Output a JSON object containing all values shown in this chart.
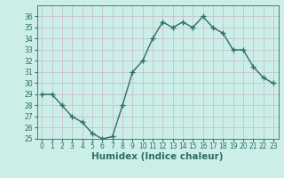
{
  "x": [
    0,
    1,
    2,
    3,
    4,
    5,
    6,
    7,
    8,
    9,
    10,
    11,
    12,
    13,
    14,
    15,
    16,
    17,
    18,
    19,
    20,
    21,
    22,
    23
  ],
  "y": [
    29,
    29,
    28,
    27,
    26.5,
    25.5,
    25,
    25.2,
    28,
    31,
    32,
    34,
    35.5,
    35,
    35.5,
    35,
    36,
    35,
    34.5,
    33,
    33,
    31.5,
    30.5,
    30
  ],
  "line_color": "#2e6e62",
  "marker": "+",
  "marker_size": 4,
  "marker_linewidth": 1.0,
  "line_width": 1.0,
  "xlabel": "Humidex (Indice chaleur)",
  "ylabel": "",
  "xlim": [
    -0.5,
    23.5
  ],
  "ylim": [
    25,
    37
  ],
  "yticks": [
    25,
    26,
    27,
    28,
    29,
    30,
    31,
    32,
    33,
    34,
    35,
    36
  ],
  "xticks": [
    0,
    1,
    2,
    3,
    4,
    5,
    6,
    7,
    8,
    9,
    10,
    11,
    12,
    13,
    14,
    15,
    16,
    17,
    18,
    19,
    20,
    21,
    22,
    23
  ],
  "bg_color": "#cceee8",
  "grid_color": "#c8b8c8",
  "tick_label_fontsize": 5.5,
  "xlabel_fontsize": 7.5,
  "xlabel_weight": "bold",
  "tick_color": "#2e6e62"
}
